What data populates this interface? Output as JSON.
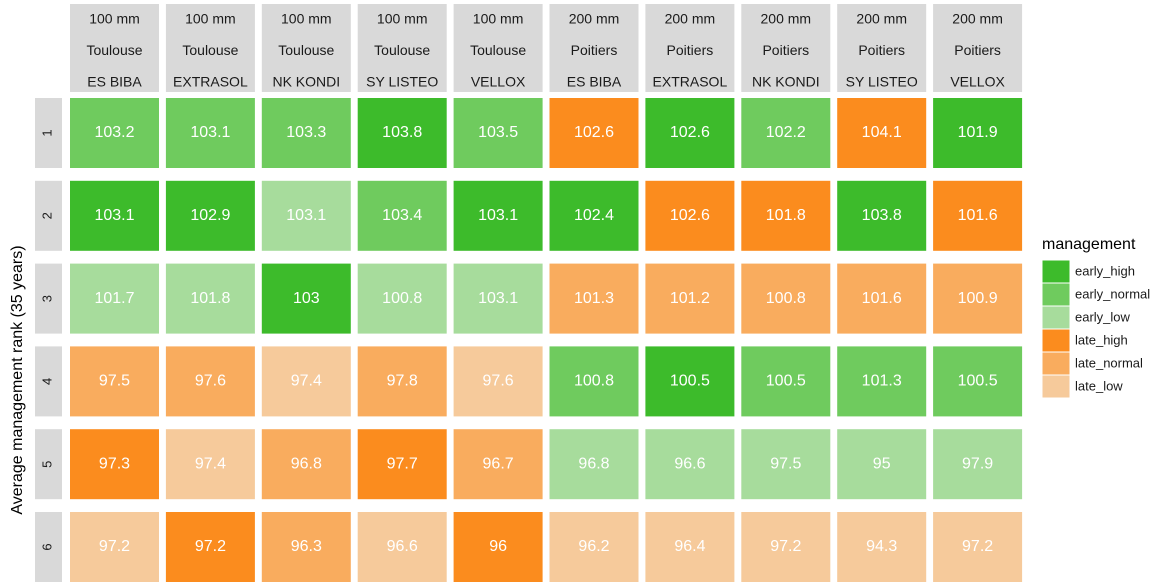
{
  "chart_data": {
    "type": "tile",
    "y_label": "Average management rank (35 years)",
    "columns": [
      [
        "100 mm",
        "Toulouse",
        "ES BIBA"
      ],
      [
        "100 mm",
        "Toulouse",
        "EXTRASOL"
      ],
      [
        "100 mm",
        "Toulouse",
        "NK KONDI"
      ],
      [
        "100 mm",
        "Toulouse",
        "SY LISTEO"
      ],
      [
        "100 mm",
        "Toulouse",
        "VELLOX"
      ],
      [
        "200 mm",
        "Poitiers",
        "ES BIBA"
      ],
      [
        "200 mm",
        "Poitiers",
        "EXTRASOL"
      ],
      [
        "200 mm",
        "Poitiers",
        "NK KONDI"
      ],
      [
        "200 mm",
        "Poitiers",
        "SY LISTEO"
      ],
      [
        "200 mm",
        "Poitiers",
        "VELLOX"
      ]
    ],
    "rows": [
      "1",
      "2",
      "3",
      "4",
      "5",
      "6"
    ],
    "legend": {
      "title": "management",
      "items": [
        {
          "name": "early_high",
          "color": "#3dbb2b"
        },
        {
          "name": "early_normal",
          "color": "#6fcb5e"
        },
        {
          "name": "early_low",
          "color": "#a7dc9c"
        },
        {
          "name": "late_high",
          "color": "#fb8c1e"
        },
        {
          "name": "late_normal",
          "color": "#f9ac5e"
        },
        {
          "name": "late_low",
          "color": "#f6ca9b"
        }
      ]
    },
    "cells": [
      [
        [
          103.2,
          "early_normal"
        ],
        [
          103.1,
          "early_normal"
        ],
        [
          103.3,
          "early_normal"
        ],
        [
          103.8,
          "early_high"
        ],
        [
          103.5,
          "early_normal"
        ],
        [
          102.6,
          "late_high"
        ],
        [
          102.6,
          "early_high"
        ],
        [
          102.2,
          "early_normal"
        ],
        [
          104.1,
          "late_high"
        ],
        [
          101.9,
          "early_high"
        ]
      ],
      [
        [
          103.1,
          "early_high"
        ],
        [
          102.9,
          "early_high"
        ],
        [
          103.1,
          "early_low"
        ],
        [
          103.4,
          "early_normal"
        ],
        [
          103.1,
          "early_high"
        ],
        [
          102.4,
          "early_high"
        ],
        [
          102.6,
          "late_high"
        ],
        [
          101.8,
          "late_high"
        ],
        [
          103.8,
          "early_high"
        ],
        [
          101.6,
          "late_high"
        ]
      ],
      [
        [
          101.7,
          "early_low"
        ],
        [
          101.8,
          "early_low"
        ],
        [
          103,
          "early_high"
        ],
        [
          100.8,
          "early_low"
        ],
        [
          103.1,
          "early_low"
        ],
        [
          101.3,
          "late_normal"
        ],
        [
          101.2,
          "late_normal"
        ],
        [
          100.8,
          "late_normal"
        ],
        [
          101.6,
          "late_normal"
        ],
        [
          100.9,
          "late_normal"
        ]
      ],
      [
        [
          97.5,
          "late_normal"
        ],
        [
          97.6,
          "late_normal"
        ],
        [
          97.4,
          "late_low"
        ],
        [
          97.8,
          "late_normal"
        ],
        [
          97.6,
          "late_low"
        ],
        [
          100.8,
          "early_normal"
        ],
        [
          100.5,
          "early_high"
        ],
        [
          100.5,
          "early_normal"
        ],
        [
          101.3,
          "early_normal"
        ],
        [
          100.5,
          "early_normal"
        ]
      ],
      [
        [
          97.3,
          "late_high"
        ],
        [
          97.4,
          "late_low"
        ],
        [
          96.8,
          "late_normal"
        ],
        [
          97.7,
          "late_high"
        ],
        [
          96.7,
          "late_normal"
        ],
        [
          96.8,
          "early_low"
        ],
        [
          96.6,
          "early_low"
        ],
        [
          97.5,
          "early_low"
        ],
        [
          95,
          "early_low"
        ],
        [
          97.9,
          "early_low"
        ]
      ],
      [
        [
          97.2,
          "late_low"
        ],
        [
          97.2,
          "late_high"
        ],
        [
          96.3,
          "late_normal"
        ],
        [
          96.6,
          "late_low"
        ],
        [
          96,
          "late_high"
        ],
        [
          96.2,
          "late_low"
        ],
        [
          96.4,
          "late_low"
        ],
        [
          97.2,
          "late_low"
        ],
        [
          94.3,
          "late_low"
        ],
        [
          97.2,
          "late_low"
        ]
      ]
    ]
  }
}
